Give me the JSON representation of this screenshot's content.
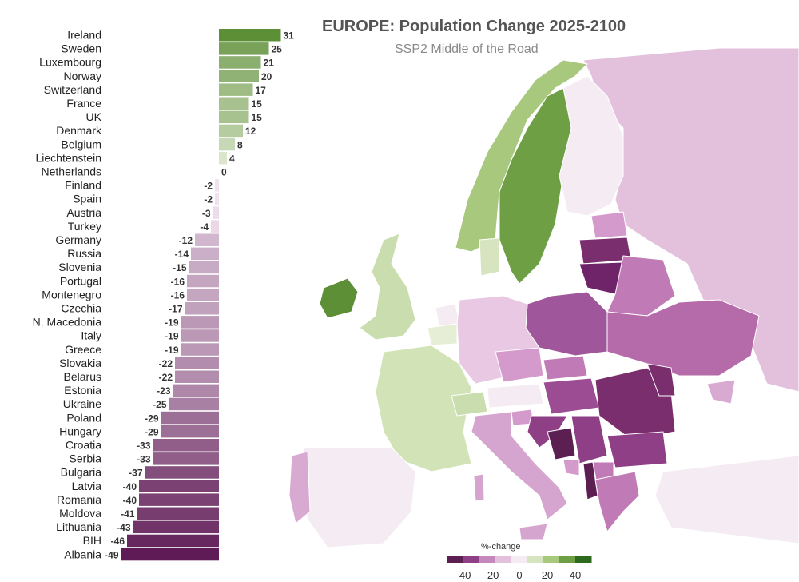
{
  "title": "EUROPE: Population Change 2025-2100",
  "subtitle": "SSP2 Middle of the Road",
  "legend": {
    "title": "%-change",
    "ticks": [
      "-40",
      "-20",
      "0",
      "20",
      "40"
    ],
    "colors": [
      "#5c1f52",
      "#8e3f85",
      "#c488bd",
      "#e3c1dd",
      "#f4ecf2",
      "#d6e4bf",
      "#a7c87d",
      "#6e9f45",
      "#2e6a1e"
    ]
  },
  "colors": {
    "pos_strong": "#5d8f37",
    "pos_light": "#e6efd6",
    "neg_light": "#f2e0ef",
    "neg_strong": "#5e1b55",
    "sea": "#ffffff",
    "nonEU": "#ececec"
  },
  "chart_data": {
    "type": "bar",
    "orientation": "horizontal",
    "categories": [
      "Ireland",
      "Sweden",
      "Luxembourg",
      "Norway",
      "Switzerland",
      "France",
      "UK",
      "Denmark",
      "Belgium",
      "Liechtenstein",
      "Netherlands",
      "Finland",
      "Spain",
      "Austria",
      "Turkey",
      "Germany",
      "Russia",
      "Slovenia",
      "Portugal",
      "Montenegro",
      "Czechia",
      "N. Macedonia",
      "Italy",
      "Greece",
      "Slovakia",
      "Belarus",
      "Estonia",
      "Ukraine",
      "Poland",
      "Hungary",
      "Croatia",
      "Serbia",
      "Bulgaria",
      "Latvia",
      "Romania",
      "Moldova",
      "Lithuania",
      "BIH",
      "Albania"
    ],
    "values": [
      31,
      25,
      21,
      20,
      17,
      15,
      15,
      12,
      8,
      4,
      0,
      -2,
      -2,
      -3,
      -4,
      -12,
      -14,
      -15,
      -16,
      -16,
      -17,
      -19,
      -19,
      -19,
      -22,
      -22,
      -23,
      -25,
      -29,
      -29,
      -33,
      -33,
      -37,
      -40,
      -40,
      -41,
      -43,
      -46,
      -49
    ],
    "xlim": [
      -49,
      31
    ]
  }
}
